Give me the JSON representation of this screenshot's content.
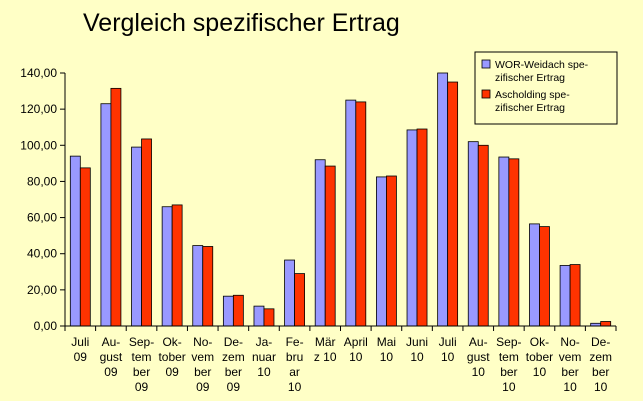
{
  "chart_data": {
    "type": "bar",
    "title": "Vergleich spezifischer Ertrag",
    "xlabel": "",
    "ylabel": "",
    "ylim": [
      0,
      140
    ],
    "y_ticks": [
      "0,00",
      "20,00",
      "40,00",
      "60,00",
      "80,00",
      "100,00",
      "120,00",
      "140,00"
    ],
    "grid": false,
    "legend_position": "top-right",
    "categories": [
      [
        "Juli",
        "09"
      ],
      [
        "Au-",
        "gust",
        "09"
      ],
      [
        "Sep-",
        "tem",
        "ber",
        "09"
      ],
      [
        "Ok-",
        "tober",
        "09"
      ],
      [
        "No-",
        "vem",
        "ber",
        "09"
      ],
      [
        "De-",
        "zem",
        "ber",
        "09"
      ],
      [
        "Ja-",
        "nuar",
        "10"
      ],
      [
        "Fe-",
        "bru",
        "ar",
        "10"
      ],
      [
        "Mär",
        "z 10"
      ],
      [
        "April",
        "10"
      ],
      [
        "Mai",
        "10"
      ],
      [
        "Juni",
        "10"
      ],
      [
        "Juli",
        "10"
      ],
      [
        "Au-",
        "gust",
        "10"
      ],
      [
        "Sep-",
        "tem",
        "ber",
        "10"
      ],
      [
        "Ok-",
        "tober",
        "10"
      ],
      [
        "No-",
        "vem",
        "ber",
        "10"
      ],
      [
        "De-",
        "zem",
        "ber",
        "10"
      ]
    ],
    "series": [
      {
        "name": [
          "WOR-Weidach spe-",
          "zifischer Ertrag"
        ],
        "color": "#9999FF",
        "values": [
          94,
          123,
          99,
          66,
          44.5,
          16.5,
          11,
          36.5,
          92,
          125,
          82.5,
          108.5,
          140,
          102,
          93.5,
          56.5,
          33.5,
          1.5
        ]
      },
      {
        "name": [
          "Ascholding spe-",
          "zifischer Ertrag"
        ],
        "color": "#FF3300",
        "values": [
          87.5,
          131.5,
          103.5,
          67,
          44,
          17,
          9.5,
          29,
          88.5,
          124,
          83,
          109,
          135,
          100,
          92.5,
          55,
          34,
          2.5
        ]
      }
    ]
  }
}
